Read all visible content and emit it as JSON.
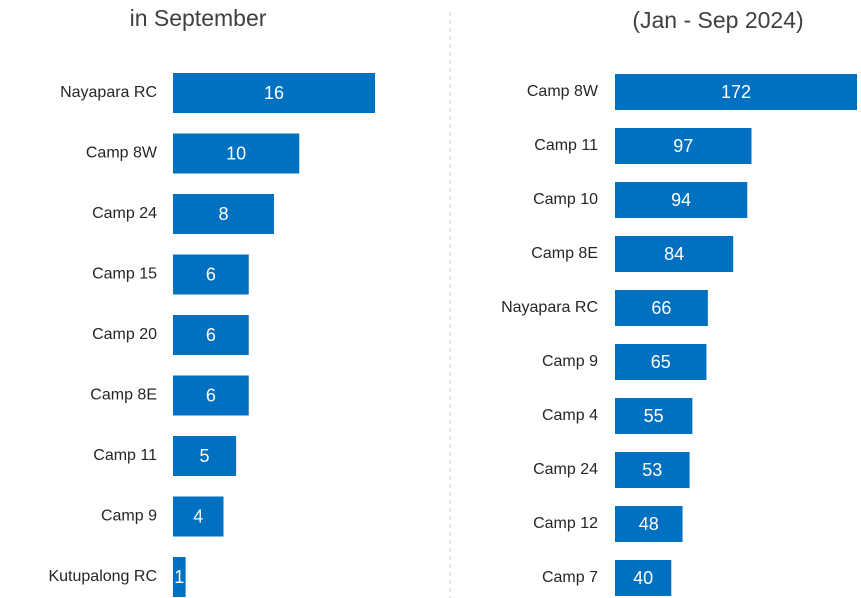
{
  "chart_data": [
    {
      "type": "bar",
      "orientation": "horizontal",
      "title": "in September",
      "categories": [
        "Nayapara RC",
        "Camp 8W",
        "Camp 24",
        "Camp 15",
        "Camp 20",
        "Camp 8E",
        "Camp 11",
        "Camp 9",
        "Kutupalong RC"
      ],
      "values": [
        16,
        10,
        8,
        6,
        6,
        6,
        5,
        4,
        1
      ],
      "color": "#0070c0"
    },
    {
      "type": "bar",
      "orientation": "horizontal",
      "title": "(Jan - Sep 2024)",
      "categories": [
        "Camp 8W",
        "Camp 11",
        "Camp 10",
        "Camp 8E",
        "Nayapara RC",
        "Camp 9",
        "Camp 4",
        "Camp 24",
        "Camp 12",
        "Camp 7"
      ],
      "values": [
        172,
        97,
        94,
        84,
        66,
        65,
        55,
        53,
        48,
        40
      ],
      "color": "#0070c0"
    }
  ]
}
